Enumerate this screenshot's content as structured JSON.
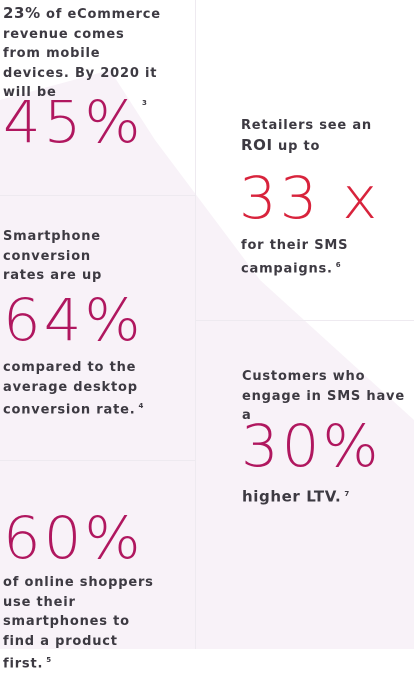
{
  "stats": {
    "s1": {
      "bold": "23%",
      "text": "of eCommerce revenue comes from mobile devices. By 2020 it will be",
      "value": "45%",
      "note": "3"
    },
    "s2": {
      "pre": "Retailers see an",
      "bold": "ROI",
      "post": "up to",
      "value": "33 x",
      "text": "for their SMS campaigns.",
      "note": "6"
    },
    "s3": {
      "pre": "Smartphone conversion rates are up",
      "value": "64%",
      "text": "compared to the average desktop conversion rate.",
      "note": "4"
    },
    "s4": {
      "pre": "Customers who engage in SMS have a",
      "value": "30%",
      "bold": "higher LTV.",
      "note": "7"
    },
    "s5": {
      "value": "60%",
      "text": "of online shoppers use their smartphones to find a product first.",
      "note": "5"
    }
  },
  "colors": {
    "magenta": "#b0175f",
    "red": "#d8233c",
    "text": "#3d3a42",
    "bg_tint": "#f8f2f8"
  }
}
